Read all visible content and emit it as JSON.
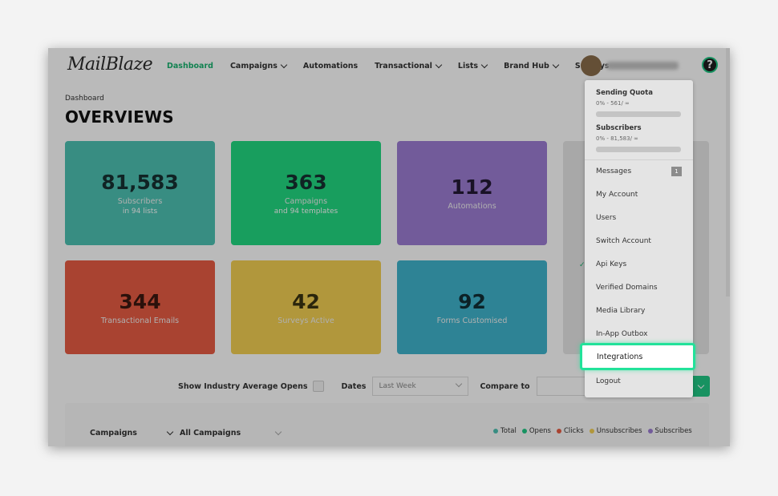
{
  "app": {
    "logo_text": "MailBlaze"
  },
  "nav": {
    "items": [
      {
        "label": "Dashboard",
        "active": true,
        "dropdown": false
      },
      {
        "label": "Campaigns",
        "active": false,
        "dropdown": true
      },
      {
        "label": "Automations",
        "active": false,
        "dropdown": false
      },
      {
        "label": "Transactional",
        "active": false,
        "dropdown": true
      },
      {
        "label": "Lists",
        "active": false,
        "dropdown": true
      },
      {
        "label": "Brand Hub",
        "active": false,
        "dropdown": true
      },
      {
        "label": "Surveys",
        "active": false,
        "dropdown": false
      }
    ],
    "help_label": "?"
  },
  "header": {
    "breadcrumb": "Dashboard",
    "title": "OVERVIEWS"
  },
  "cards": [
    {
      "value": "81,583",
      "label": "Subscribers",
      "sub": "in 94 lists",
      "color": "#4dc2b2"
    },
    {
      "value": "363",
      "label": "Campaigns",
      "sub": "and 94 templates",
      "color": "#22d981"
    },
    {
      "value": "112",
      "label": "Automations",
      "sub": "",
      "color": "#9d7dd3"
    },
    {
      "value": "344",
      "label": "Transactional Emails",
      "sub": "",
      "color": "#e85d44"
    },
    {
      "value": "42",
      "label": "Surveys Active",
      "sub": "",
      "color": "#f3cf53"
    },
    {
      "value": "92",
      "label": "Forms Customised",
      "sub": "",
      "color": "#3fb4cc"
    }
  ],
  "filters": {
    "industry_label": "Show Industry Average Opens",
    "dates_label": "Dates",
    "dates_value": "Last Week",
    "compare_label": "Compare to"
  },
  "bottom": {
    "select1": "Campaigns",
    "select2": "All Campaigns",
    "legend": [
      {
        "name": "Total",
        "color": "#4dc2b2"
      },
      {
        "name": "Opens",
        "color": "#22c986"
      },
      {
        "name": "Clicks",
        "color": "#e85d44"
      },
      {
        "name": "Unsubscribes",
        "color": "#f3cf53"
      },
      {
        "name": "Subscribes",
        "color": "#9d7dd3"
      }
    ]
  },
  "menu": {
    "sending_quota_title": "Sending Quota",
    "sending_quota_value": "0% - 561/ ∞",
    "subscribers_title": "Subscribers",
    "subscribers_value": "0% - 81,583/ ∞",
    "messages_badge": "1",
    "items": [
      "Messages",
      "My Account",
      "Users",
      "Switch Account",
      "Api Keys",
      "Verified Domains",
      "Media Library",
      "In-App Outbox",
      "Integrations",
      "Logout"
    ],
    "highlighted_item": "Integrations"
  }
}
